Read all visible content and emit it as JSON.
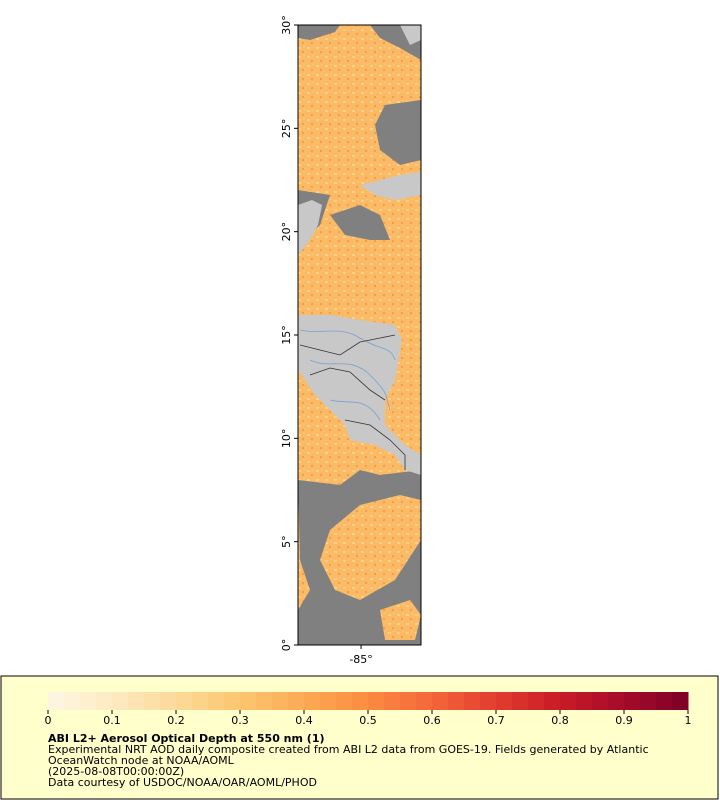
{
  "map": {
    "type": "map",
    "ylim": [
      0,
      30
    ],
    "yticks": [
      {
        "value": 0,
        "label": "0°"
      },
      {
        "value": 5,
        "label": "5°"
      },
      {
        "value": 10,
        "label": "10°"
      },
      {
        "value": 15,
        "label": "15°"
      },
      {
        "value": 20,
        "label": "20°"
      },
      {
        "value": 25,
        "label": "25°"
      },
      {
        "value": 30,
        "label": "30°"
      }
    ],
    "xlim": [
      -88.05,
      -82.1
    ],
    "xticks": [
      {
        "value": -85,
        "label": "-85°"
      }
    ]
  },
  "legend": {
    "title": "ABI L2+ Aerosol Optical Depth at 550 nm (1)",
    "lines": [
      "Experimental NRT AOD daily composite created from ABI L2 data from GOES-19. Fields generated by Atlantic",
      "OceanWatch node at NOAA/AOML",
      "(2025-08-08T00:00:00Z)",
      "Data courtesy of USDOC/NOAA/OAR/AOML/PHOD"
    ],
    "range": [
      0,
      1
    ],
    "ticks": [
      0,
      0.1,
      0.2,
      0.3,
      0.4,
      0.5,
      0.6,
      0.7,
      0.8,
      0.9,
      1
    ],
    "colors": [
      "#fef6e4",
      "#feeac2",
      "#fdd999",
      "#fdc56f",
      "#fcaa53",
      "#fb8b40",
      "#f5663a",
      "#e23d2e",
      "#c81b27",
      "#a50b2a",
      "#7d0025"
    ]
  }
}
